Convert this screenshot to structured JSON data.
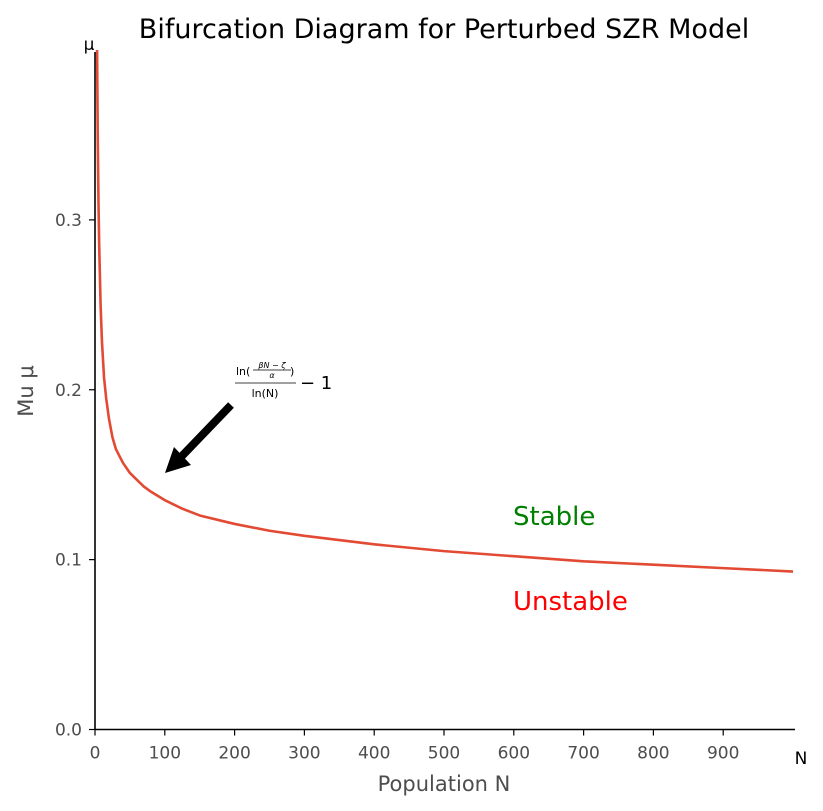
{
  "chart_data": {
    "type": "line",
    "title": "Bifurcation Diagram for Perturbed SZR Model",
    "xlabel": "Population N",
    "ylabel": "Mu μ",
    "x_end_label": "N",
    "y_end_label": "μ",
    "xlim": [
      0,
      1000
    ],
    "ylim": [
      0,
      0.4
    ],
    "xticks": [
      0,
      100,
      200,
      300,
      400,
      500,
      600,
      700,
      800,
      900
    ],
    "yticks": [
      0.0,
      0.1,
      0.2,
      0.3
    ],
    "ytick_labels": [
      "0.0",
      "0.1",
      "0.2",
      "0.3"
    ],
    "grid": false,
    "series": [
      {
        "color": "#e24a33",
        "x": [
          3,
          4,
          5,
          6,
          8,
          10,
          13,
          16,
          20,
          25,
          30,
          40,
          50,
          60,
          70,
          80,
          100,
          125,
          150,
          200,
          250,
          300,
          400,
          500,
          600,
          700,
          800,
          900,
          1000
        ],
        "y": [
          0.4,
          0.345,
          0.31,
          0.285,
          0.25,
          0.228,
          0.207,
          0.195,
          0.183,
          0.172,
          0.165,
          0.157,
          0.151,
          0.147,
          0.143,
          0.14,
          0.135,
          0.13,
          0.126,
          0.121,
          0.117,
          0.114,
          0.109,
          0.105,
          0.102,
          0.099,
          0.097,
          0.095,
          0.093
        ]
      }
    ],
    "annotations": {
      "formula": {
        "ln": "ln(",
        "num": "βN − ζ",
        "den": "α",
        "close": ")",
        "denominator": "ln(N)",
        "suffix": "− 1"
      },
      "arrow_target": {
        "x": 100,
        "y": 0.15
      },
      "stable": {
        "text": "Stable",
        "color": "#008000"
      },
      "unstable": {
        "text": "Unstable",
        "color": "#ff0000"
      }
    }
  }
}
